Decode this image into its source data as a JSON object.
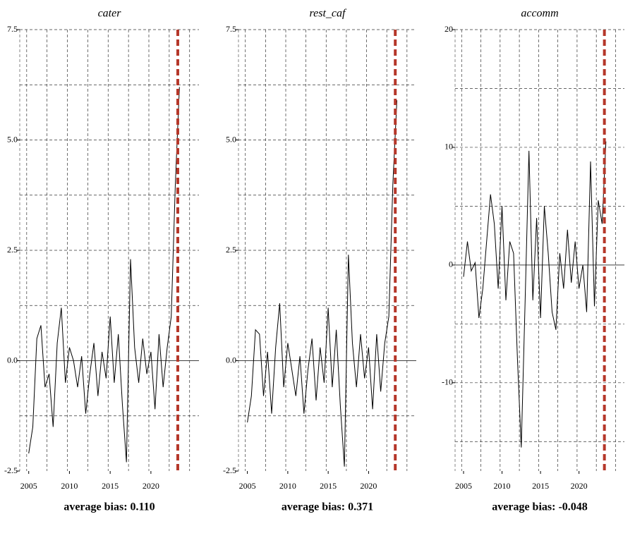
{
  "chart_data": [
    {
      "type": "line",
      "title": "cater",
      "color": "#000000",
      "x": [
        2005,
        2005.5,
        2006,
        2006.5,
        2007,
        2007.5,
        2008,
        2008.5,
        2009,
        2009.5,
        2010,
        2010.5,
        2011,
        2011.5,
        2012,
        2012.5,
        2013,
        2013.5,
        2014,
        2014.5,
        2015,
        2015.5,
        2016,
        2016.5,
        2017,
        2017.5,
        2018,
        2018.5,
        2019,
        2019.5,
        2020,
        2020.5,
        2021,
        2021.5,
        2022,
        2022.5,
        2023,
        2023.5
      ],
      "values": [
        -2.1,
        -1.5,
        0.5,
        0.8,
        -0.6,
        -0.3,
        -1.5,
        0.4,
        1.2,
        -0.5,
        0.3,
        0.0,
        -0.6,
        0.1,
        -1.2,
        -0.3,
        0.4,
        -0.8,
        0.2,
        -0.4,
        1.0,
        -0.5,
        0.6,
        -1.0,
        -2.3,
        2.3,
        0.3,
        -0.5,
        0.5,
        -0.3,
        0.2,
        -1.1,
        0.6,
        -0.6,
        0.3,
        1.0,
        4.0,
        6.2
      ],
      "xlim": [
        2003.9,
        2025.9
      ],
      "xticks": [
        2005,
        2010,
        2015,
        2020
      ],
      "xgrid": [
        2004.75,
        2007.25,
        2009.75,
        2012.25,
        2014.75,
        2017.25,
        2019.75,
        2022.25,
        2024.75
      ],
      "ylim": [
        -2.5,
        7.5
      ],
      "yticks": [
        -2.5,
        {
          "value": 0,
          "label": "0.0"
        },
        2.5,
        {
          "value": 5,
          "label": "5.0"
        },
        7.5
      ],
      "ygrid": [
        -1.25,
        1.25,
        2.5,
        3.75,
        5,
        6.25,
        7.5
      ],
      "vline": {
        "value": 2023.3,
        "color": "#b5372a"
      },
      "annotation": "average bias: 0.110"
    },
    {
      "type": "line",
      "title": "rest_caf",
      "color": "#000000",
      "x": [
        2005,
        2005.5,
        2006,
        2006.5,
        2007,
        2007.5,
        2008,
        2008.5,
        2009,
        2009.5,
        2010,
        2010.5,
        2011,
        2011.5,
        2012,
        2012.5,
        2013,
        2013.5,
        2014,
        2014.5,
        2015,
        2015.5,
        2016,
        2016.5,
        2017,
        2017.5,
        2018,
        2018.5,
        2019,
        2019.5,
        2020,
        2020.5,
        2021,
        2021.5,
        2022,
        2022.5,
        2023,
        2023.5
      ],
      "values": [
        -1.4,
        -0.8,
        0.7,
        0.6,
        -0.8,
        0.2,
        -1.2,
        0.3,
        1.3,
        -0.6,
        0.4,
        -0.2,
        -0.8,
        0.1,
        -1.2,
        -0.2,
        0.5,
        -0.9,
        0.3,
        -0.5,
        1.2,
        -0.6,
        0.7,
        -1.0,
        -2.4,
        2.4,
        0.4,
        -0.6,
        0.6,
        -0.4,
        0.3,
        -1.1,
        0.6,
        -0.7,
        0.4,
        1.0,
        4.0,
        5.9
      ],
      "xlim": [
        2003.9,
        2025.9
      ],
      "xticks": [
        2005,
        2010,
        2015,
        2020
      ],
      "xgrid": [
        2004.75,
        2007.25,
        2009.75,
        2012.25,
        2014.75,
        2017.25,
        2019.75,
        2022.25,
        2024.75
      ],
      "ylim": [
        -2.5,
        7.5
      ],
      "yticks": [
        -2.5,
        {
          "value": 0,
          "label": "0.0"
        },
        2.5,
        {
          "value": 5,
          "label": "5.0"
        },
        7.5
      ],
      "ygrid": [
        -1.25,
        1.25,
        2.5,
        3.75,
        5,
        6.25,
        7.5
      ],
      "vline": {
        "value": 2023.3,
        "color": "#b5372a"
      },
      "annotation": "average bias: 0.371"
    },
    {
      "type": "line",
      "title": "accomm",
      "color": "#000000",
      "x": [
        2005,
        2005.5,
        2006,
        2006.5,
        2007,
        2007.5,
        2008,
        2008.5,
        2009,
        2009.5,
        2010,
        2010.5,
        2011,
        2011.5,
        2012,
        2012.5,
        2013,
        2013.5,
        2014,
        2014.5,
        2015,
        2015.5,
        2016,
        2016.5,
        2017,
        2017.5,
        2018,
        2018.5,
        2019,
        2019.5,
        2020,
        2020.5,
        2021,
        2021.5,
        2022,
        2022.5,
        2023,
        2023.5
      ],
      "values": [
        -1,
        2,
        -0.5,
        0.2,
        -4.5,
        -2,
        2,
        6,
        3.5,
        -2,
        5,
        -3,
        2,
        1,
        -8,
        -15.5,
        -3,
        9.7,
        -3,
        4,
        -4.5,
        5,
        1,
        -4,
        -5.5,
        1,
        -2,
        3,
        -1.5,
        2,
        -2,
        0,
        -4,
        8.8,
        -3.5,
        5.5,
        3.5,
        10.5
      ],
      "xlim": [
        2003.9,
        2025.9
      ],
      "xticks": [
        2005,
        2010,
        2015,
        2020
      ],
      "xgrid": [
        2004.75,
        2007.25,
        2009.75,
        2012.25,
        2014.75,
        2017.25,
        2019.75,
        2022.25,
        2024.75
      ],
      "ylim": [
        -17.5,
        20
      ],
      "yticks": [
        -10,
        0,
        10,
        20
      ],
      "ygrid": [
        -15,
        -10,
        -5,
        5,
        10,
        15,
        20
      ],
      "vline": {
        "value": 2023.3,
        "color": "#b5372a"
      },
      "annotation": "average bias: -0.048"
    }
  ]
}
